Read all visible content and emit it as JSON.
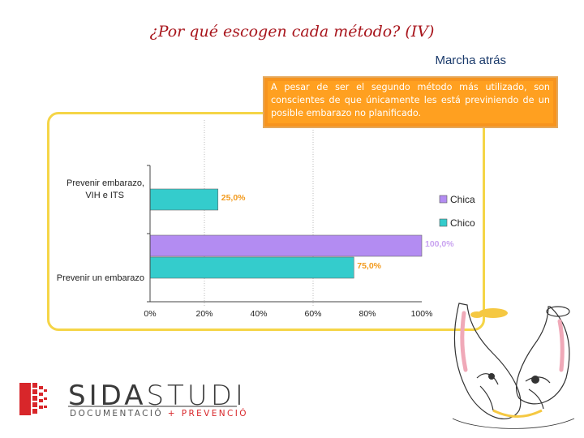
{
  "title": "¿Por qué escogen cada método? (IV)",
  "section": "Marcha atrás",
  "callout": "A pesar de ser el segundo método más utilizado, son conscientes de que únicamente les está previniendo de un posible embarazo no planificado.",
  "logo": {
    "name_part1": "SIDA",
    "name_part2": "STUDI",
    "tagline_part1": "DOCUMENTACIÓ",
    "tagline_sep": "+",
    "tagline_part2": "PREVENCIÓ"
  },
  "chart_data": {
    "type": "bar",
    "orientation": "horizontal",
    "title": "",
    "xlabel": "",
    "ylabel": "",
    "xlim": [
      0,
      100
    ],
    "categories": [
      "Prevenir embarazo, VIH e ITS",
      "Prevenir un embarazo"
    ],
    "category_lines": [
      [
        "Prevenir embarazo,",
        "VIH e ITS"
      ],
      [
        "Prevenir un embarazo"
      ]
    ],
    "series": [
      {
        "name": "Chica",
        "color": "#b38cf2",
        "values": [
          null,
          100.0
        ],
        "labels": [
          "",
          "100,0%"
        ]
      },
      {
        "name": "Chico",
        "color": "#34cccc",
        "values": [
          25.0,
          75.0
        ],
        "labels": [
          "25,0%",
          "75,0%"
        ]
      }
    ],
    "xticks": [
      "0%",
      "20%",
      "40%",
      "60%",
      "80%",
      "100%"
    ],
    "legend_position": "right"
  },
  "colors": {
    "title": "#a8151c",
    "callout_bg": "#ffa020",
    "frame": "#f5d547",
    "logo_red": "#d8262a"
  }
}
